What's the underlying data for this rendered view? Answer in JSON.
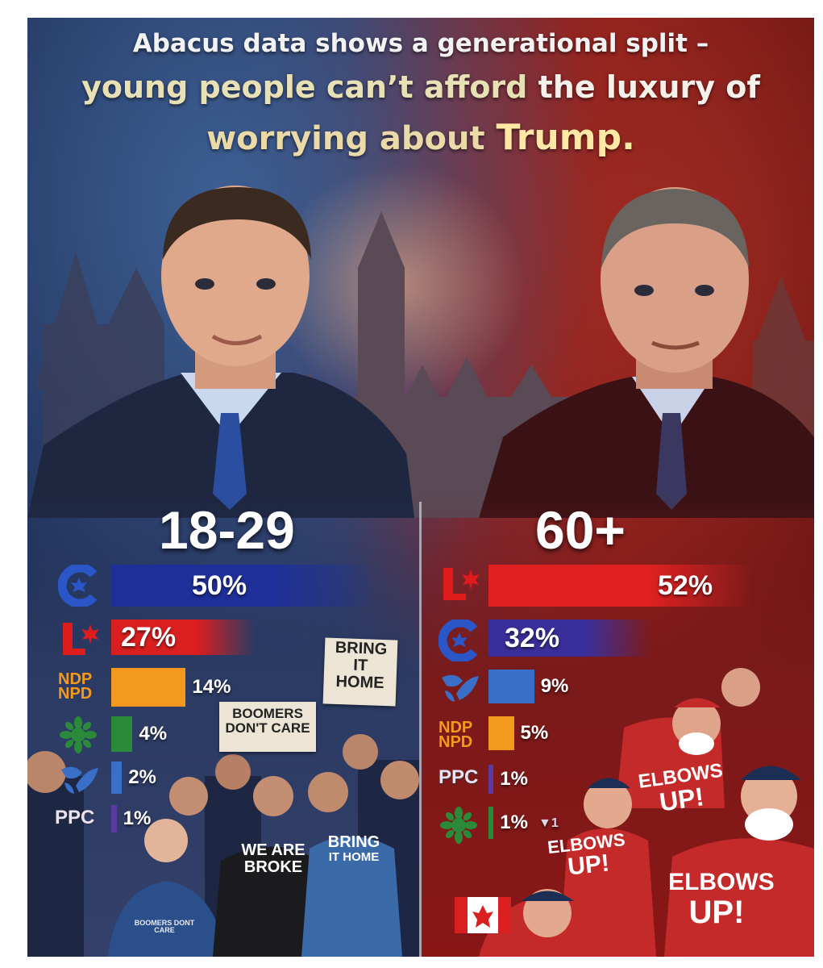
{
  "headline": {
    "line1": "Abacus data shows a generational split –",
    "line2a": "young people can’t afford",
    "line2b": "the luxury of",
    "line3a": "worrying about",
    "line3b": "Trump."
  },
  "colors": {
    "conservative": "#1f2f9a",
    "liberal": "#d91f1f",
    "ndp": "#f39a1e",
    "green": "#2a8a3a",
    "bloc": "#3a6fc8",
    "ppc": "#5a3aa0",
    "liberal_60": "#e02020",
    "conservative_60": "#3a2f9a"
  },
  "chart_data": [
    {
      "type": "bar",
      "title": "18-29",
      "categories": [
        "Conservative",
        "Liberal",
        "NDP",
        "Green",
        "Bloc",
        "PPC"
      ],
      "values": [
        50,
        27,
        14,
        4,
        2,
        1
      ],
      "labels": [
        "50%",
        "27%",
        "14%",
        "4%",
        "2%",
        "1%"
      ],
      "orientation": "horizontal"
    },
    {
      "type": "bar",
      "title": "60+",
      "categories": [
        "Liberal",
        "Conservative",
        "Bloc",
        "NDP",
        "PPC",
        "Green"
      ],
      "values": [
        52,
        32,
        9,
        5,
        1,
        1
      ],
      "labels": [
        "52%",
        "32%",
        "9%",
        "5%",
        "1%",
        "1%"
      ],
      "orientation": "horizontal"
    }
  ],
  "party_text": {
    "ndp_line1": "NDP",
    "ndp_line2": "NPD",
    "ppc": "PPC"
  },
  "green_60_change": "▼1",
  "signs": {
    "bring_it_home": [
      "BRING",
      "IT",
      "HOME"
    ],
    "boomers_dont_care": [
      "BOOMERS",
      "DON'T CARE"
    ]
  },
  "shirts": {
    "we_are_broke": [
      "WE ARE",
      "BROKE"
    ],
    "bring_it_home": [
      "BRING",
      "IT HOME"
    ],
    "boomers_dont_care": [
      "BOOMERS DONT",
      "CARE"
    ],
    "elbows_up_1": [
      "ELBOWS",
      "UP!"
    ],
    "elbows_up_2": [
      "ELBOWS",
      "UP!"
    ],
    "elbows_up_3": [
      "ELBOWS",
      "UP!"
    ]
  }
}
